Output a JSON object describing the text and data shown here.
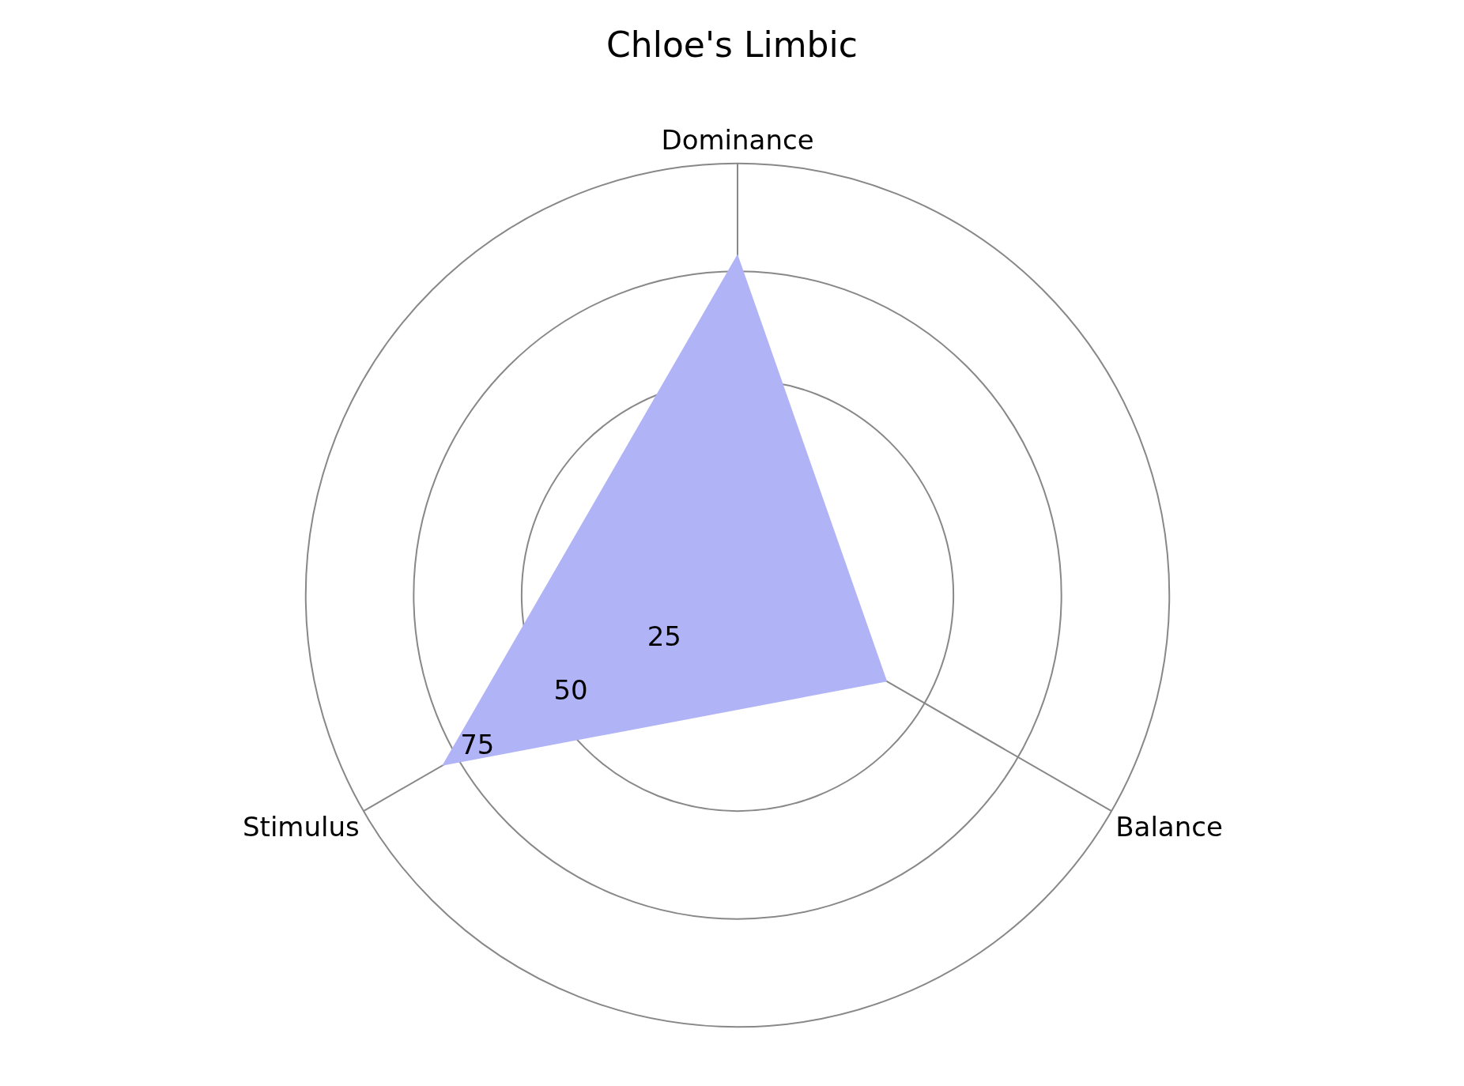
{
  "chart_data": {
    "type": "radar",
    "title": "Chloe's Limbic",
    "categories": [
      "Dominance",
      "Balance",
      "Stimulus"
    ],
    "series": [
      {
        "color": "#b0b4f7",
        "values": [
          79,
          40,
          79
        ]
      }
    ],
    "ylim": [
      0,
      100
    ],
    "yticks": [
      25,
      50,
      75
    ],
    "grid": true
  }
}
